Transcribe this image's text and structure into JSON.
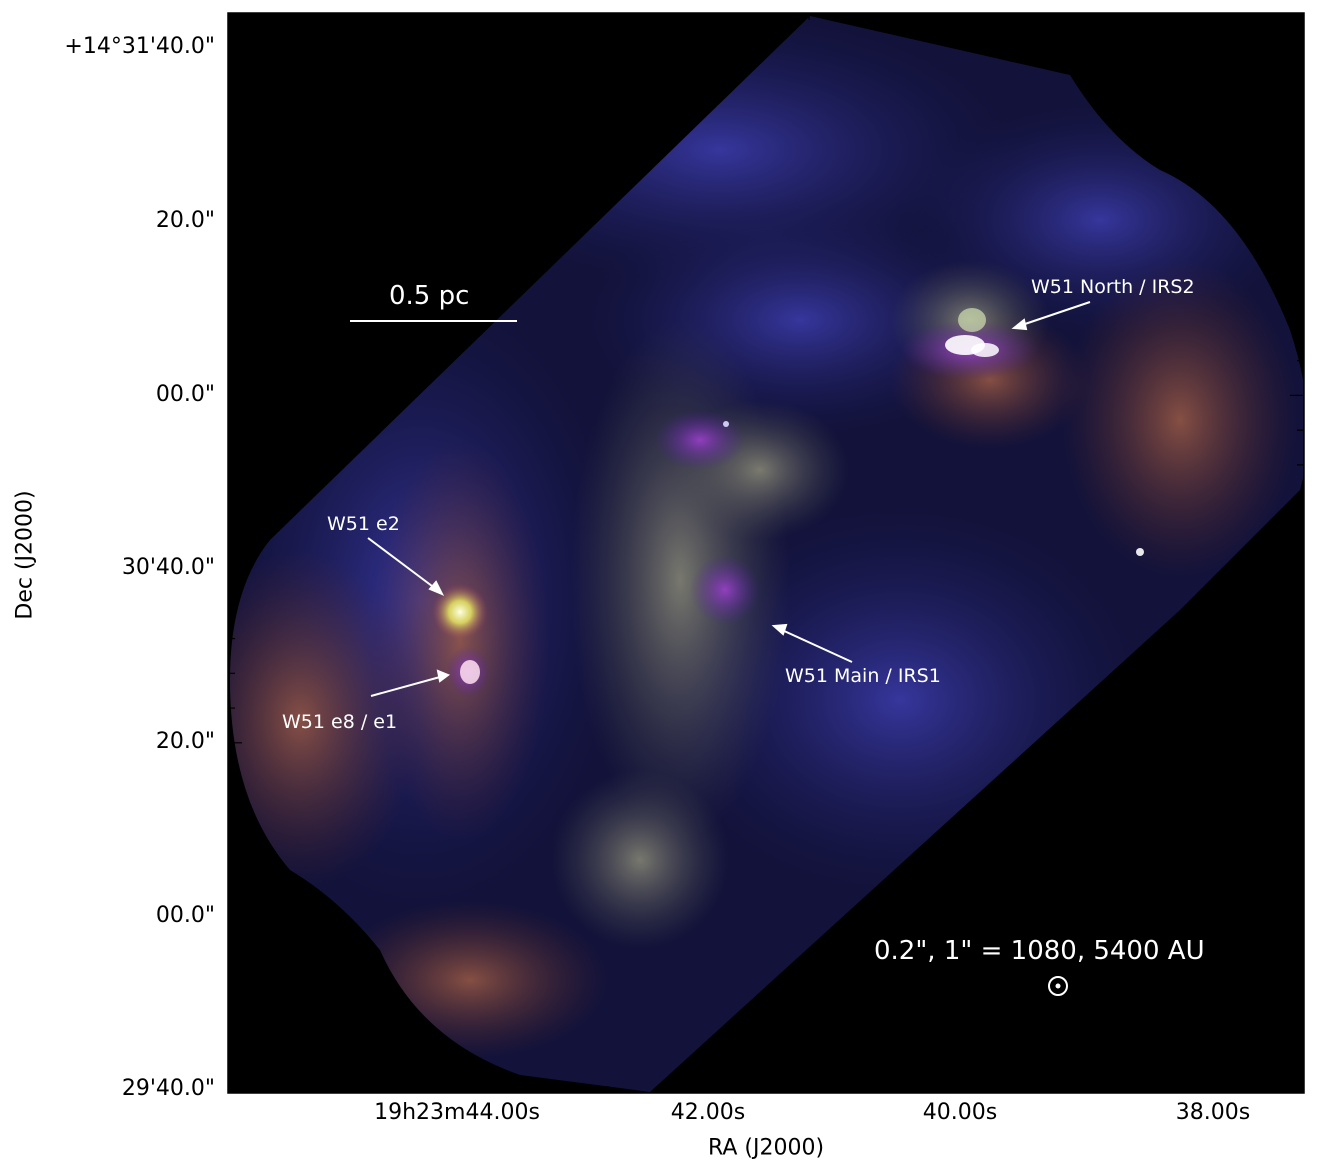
{
  "axes": {
    "xlabel": "RA (J2000)",
    "ylabel": "Dec (J2000)",
    "xticks": [
      "19h23m44.00s",
      "42.00s",
      "40.00s",
      "38.00s"
    ],
    "yticks": [
      "+14°31'40.0\"",
      "20.0\"",
      "00.0\"",
      "30'40.0\"",
      "20.0\"",
      "00.0\"",
      "29'40.0\""
    ]
  },
  "annotations": {
    "north": "W51 North / IRS2",
    "e2": "W51 e2",
    "main": "W51 Main / IRS1",
    "e8": "W51 e8 / e1"
  },
  "scalebar": {
    "label": "0.5 pc"
  },
  "beam": {
    "label": "0.2\", 1\" = 1080, 5400 AU"
  },
  "colors": {
    "background": "#000000",
    "emission_blue": "#2a2a8c",
    "emission_red": "#8a4a3a",
    "emission_gray": "#8a8a6a",
    "annotation": "#ffffff"
  }
}
